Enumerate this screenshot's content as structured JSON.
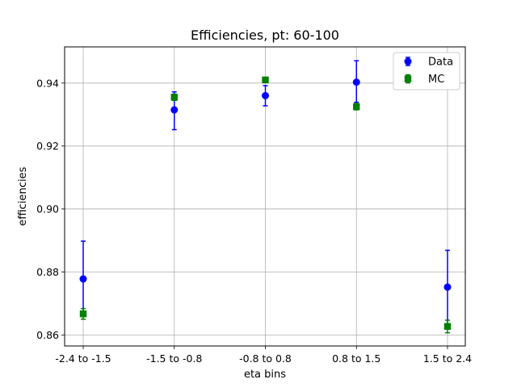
{
  "chart_data": {
    "type": "scatter",
    "title": "Efficiencies, pt: 60-100",
    "xlabel": "eta bins",
    "ylabel": "efficiencies",
    "categories": [
      "-2.4 to -1.5",
      "-1.5 to -0.8",
      "-0.8 to 0.8",
      "0.8 to 1.5",
      "1.5 to 2.4"
    ],
    "ylim": [
      0.8565,
      0.9515
    ],
    "yticks": [
      "0.86",
      "0.88",
      "0.90",
      "0.92",
      "0.94"
    ],
    "ytick_values": [
      0.86,
      0.88,
      0.9,
      0.92,
      0.94
    ],
    "grid": true,
    "legend_position": "top-right",
    "series": [
      {
        "name": "Data",
        "marker": "circle",
        "color": "#0000ff",
        "values": [
          0.8778,
          0.9315,
          0.936,
          0.9403,
          0.8752
        ],
        "err_low": [
          0.8665,
          0.9252,
          0.9328,
          0.9339,
          0.863
        ],
        "err_high": [
          0.8898,
          0.9372,
          0.9392,
          0.9471,
          0.8869
        ]
      },
      {
        "name": "MC",
        "marker": "square",
        "color": "#008000",
        "values": [
          0.8667,
          0.9355,
          0.941,
          0.9325,
          0.8627
        ],
        "err_low": [
          0.865,
          0.9345,
          0.9405,
          0.9315,
          0.8607
        ],
        "err_high": [
          0.8684,
          0.9365,
          0.9415,
          0.9335,
          0.8647
        ]
      }
    ]
  }
}
